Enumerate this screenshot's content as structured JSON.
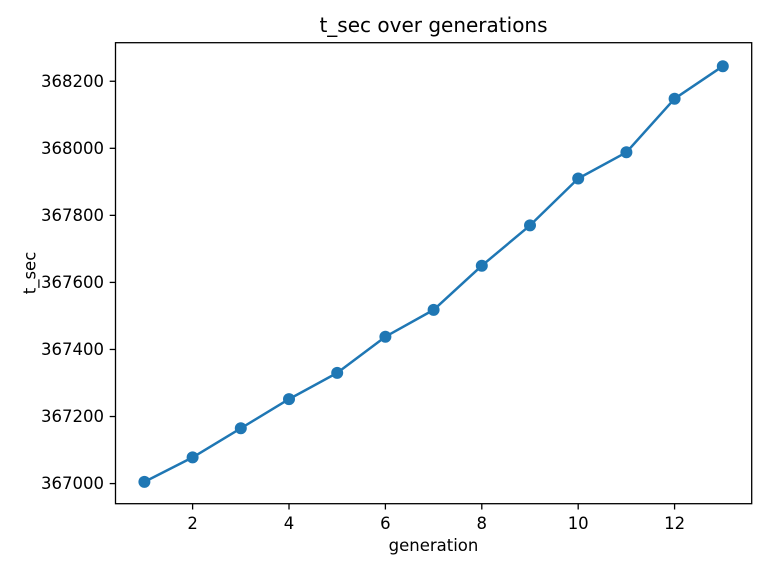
{
  "figure": {
    "background_color": "#ffffff"
  },
  "chart_data": {
    "type": "line",
    "title": "t_sec over generations",
    "xlabel": "generation",
    "ylabel": "t_sec",
    "x": [
      1,
      2,
      3,
      4,
      5,
      6,
      7,
      8,
      9,
      10,
      11,
      12,
      13
    ],
    "series": [
      {
        "name": "t_sec",
        "values": [
          367005,
          367078,
          367165,
          367252,
          367330,
          367438,
          367518,
          367650,
          367770,
          367910,
          367988,
          368148,
          368245
        ],
        "color": "#1f77b4",
        "marker": "circle",
        "line_width": 2.5,
        "marker_radius": 6
      }
    ],
    "xlim": [
      0.4,
      13.6
    ],
    "ylim": [
      366940,
      368315
    ],
    "xticks": [
      2,
      4,
      6,
      8,
      10,
      12
    ],
    "yticks": [
      367000,
      367200,
      367400,
      367600,
      367800,
      368000,
      368200
    ],
    "grid": false,
    "legend": "none",
    "axis_color": "#000000",
    "tick_label_color": "#000000",
    "tick_label_font_px": 16.5
  }
}
